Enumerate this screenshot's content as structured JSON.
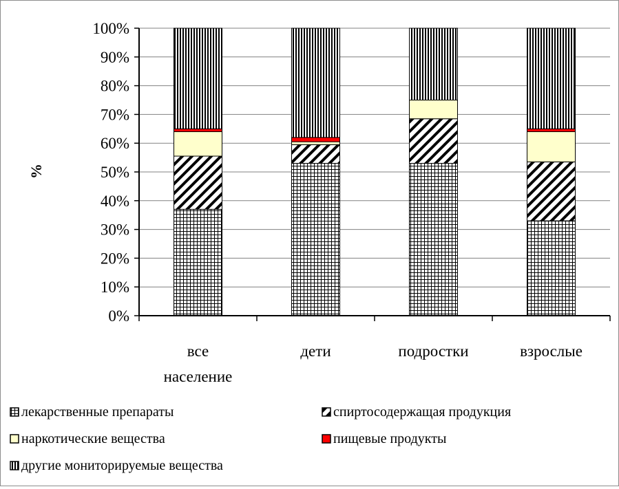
{
  "chart_data": {
    "type": "bar",
    "stacked": true,
    "percent": true,
    "ylabel": "%",
    "xlabel": "",
    "ylim": [
      0,
      100
    ],
    "yticks": [
      "0%",
      "10%",
      "20%",
      "30%",
      "40%",
      "50%",
      "60%",
      "70%",
      "80%",
      "90%",
      "100%"
    ],
    "categories": [
      [
        "все",
        "население"
      ],
      [
        "дети"
      ],
      [
        "подростки"
      ],
      [
        "взрослые"
      ]
    ],
    "series": [
      {
        "name": "лекарственные препараты",
        "values": [
          37,
          53,
          53,
          33
        ],
        "pattern": "grid",
        "color": "#ffffff"
      },
      {
        "name": "спиртосодержащая продукция",
        "values": [
          18.5,
          6.5,
          15.5,
          20.5
        ],
        "pattern": "diagonal",
        "color": "#ffffff"
      },
      {
        "name": "наркотические вещества",
        "values": [
          8.5,
          1,
          6.5,
          10.5
        ],
        "pattern": "solid",
        "color": "#ffffcc"
      },
      {
        "name": "пищевые продукты",
        "values": [
          1,
          1.5,
          0,
          1
        ],
        "pattern": "solid",
        "color": "#ff0000"
      },
      {
        "name": "другие мониторируемые вещества",
        "values": [
          35,
          38,
          25,
          35
        ],
        "pattern": "vertical",
        "color": "#ffffff"
      }
    ],
    "grid": true,
    "legend_position": "bottom"
  }
}
